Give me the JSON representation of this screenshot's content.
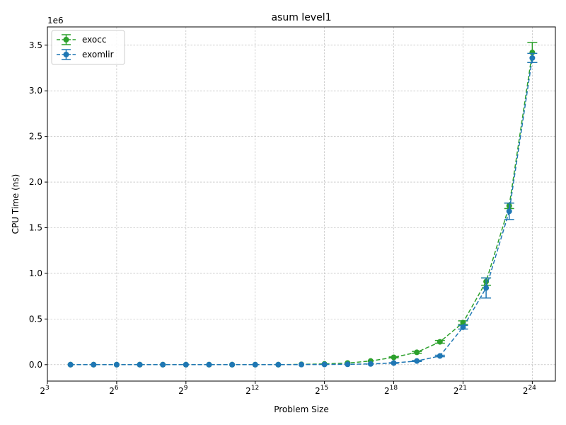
{
  "chart_data": {
    "type": "line",
    "title": "asum level1",
    "xlabel": "Problem Size",
    "ylabel": "CPU Time (ns)",
    "y_offset_text": "1e6",
    "x_scale": "log2",
    "xlim_exp": [
      3,
      25
    ],
    "ylim": [
      -180000,
      3700000
    ],
    "x_ticks": [
      {
        "base": "2",
        "exp": "3",
        "value": 8
      },
      {
        "base": "2",
        "exp": "6",
        "value": 64
      },
      {
        "base": "2",
        "exp": "9",
        "value": 512
      },
      {
        "base": "2",
        "exp": "12",
        "value": 4096
      },
      {
        "base": "2",
        "exp": "15",
        "value": 32768
      },
      {
        "base": "2",
        "exp": "18",
        "value": 262144
      },
      {
        "base": "2",
        "exp": "21",
        "value": 2097152
      },
      {
        "base": "2",
        "exp": "24",
        "value": 16777216
      }
    ],
    "y_ticks": [
      {
        "value": 0,
        "label": "0.0"
      },
      {
        "value": 500000,
        "label": "0.5"
      },
      {
        "value": 1000000,
        "label": "1.0"
      },
      {
        "value": 1500000,
        "label": "1.5"
      },
      {
        "value": 2000000,
        "label": "2.0"
      },
      {
        "value": 2500000,
        "label": "2.5"
      },
      {
        "value": 3000000,
        "label": "3.0"
      },
      {
        "value": 3500000,
        "label": "3.5"
      }
    ],
    "grid": true,
    "legend_position": "top-left",
    "x": [
      16,
      32,
      64,
      128,
      256,
      512,
      1024,
      2048,
      4096,
      8192,
      16384,
      32768,
      65536,
      131072,
      262144,
      524288,
      1048576,
      2097152,
      4194304,
      8388608,
      16777216
    ],
    "series": [
      {
        "name": "exocc",
        "color": "#2ca02c",
        "values": [
          0,
          0,
          0,
          0,
          0,
          0,
          0,
          0,
          0,
          0,
          3000,
          8000,
          18000,
          40000,
          80000,
          135000,
          250000,
          460000,
          910000,
          1740000,
          3420000
        ],
        "errors": [
          0,
          0,
          0,
          0,
          0,
          0,
          0,
          0,
          0,
          0,
          0,
          0,
          0,
          0,
          5000,
          10000,
          15000,
          20000,
          40000,
          30000,
          110000
        ]
      },
      {
        "name": "exomlir",
        "color": "#1f77b4",
        "values": [
          0,
          0,
          0,
          0,
          0,
          0,
          0,
          0,
          0,
          0,
          1000,
          2000,
          4000,
          8000,
          18000,
          40000,
          95000,
          410000,
          840000,
          1680000,
          3360000
        ],
        "errors": [
          0,
          0,
          0,
          0,
          0,
          0,
          0,
          0,
          0,
          0,
          0,
          0,
          0,
          0,
          3000,
          5000,
          8000,
          20000,
          110000,
          90000,
          50000
        ]
      }
    ]
  }
}
